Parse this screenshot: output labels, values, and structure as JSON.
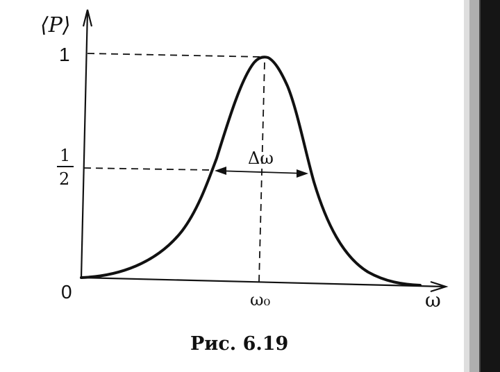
{
  "figure": {
    "y_axis_label": "⟨P⟩",
    "x_axis_label": "ω",
    "origin_label": "0",
    "y_tick_top": "1",
    "y_tick_half_numerator": "1",
    "y_tick_half_denominator": "2",
    "x_tick_center": "ω₀",
    "width_label": "Δω",
    "caption": "Рис. 6.19"
  },
  "curve": {
    "type": "resonance",
    "peak_value": 1,
    "half_value": 0.5
  },
  "colors": {
    "ink": "#111111",
    "background": "#ffffff",
    "edge_shadow": "#1a1a1a"
  }
}
